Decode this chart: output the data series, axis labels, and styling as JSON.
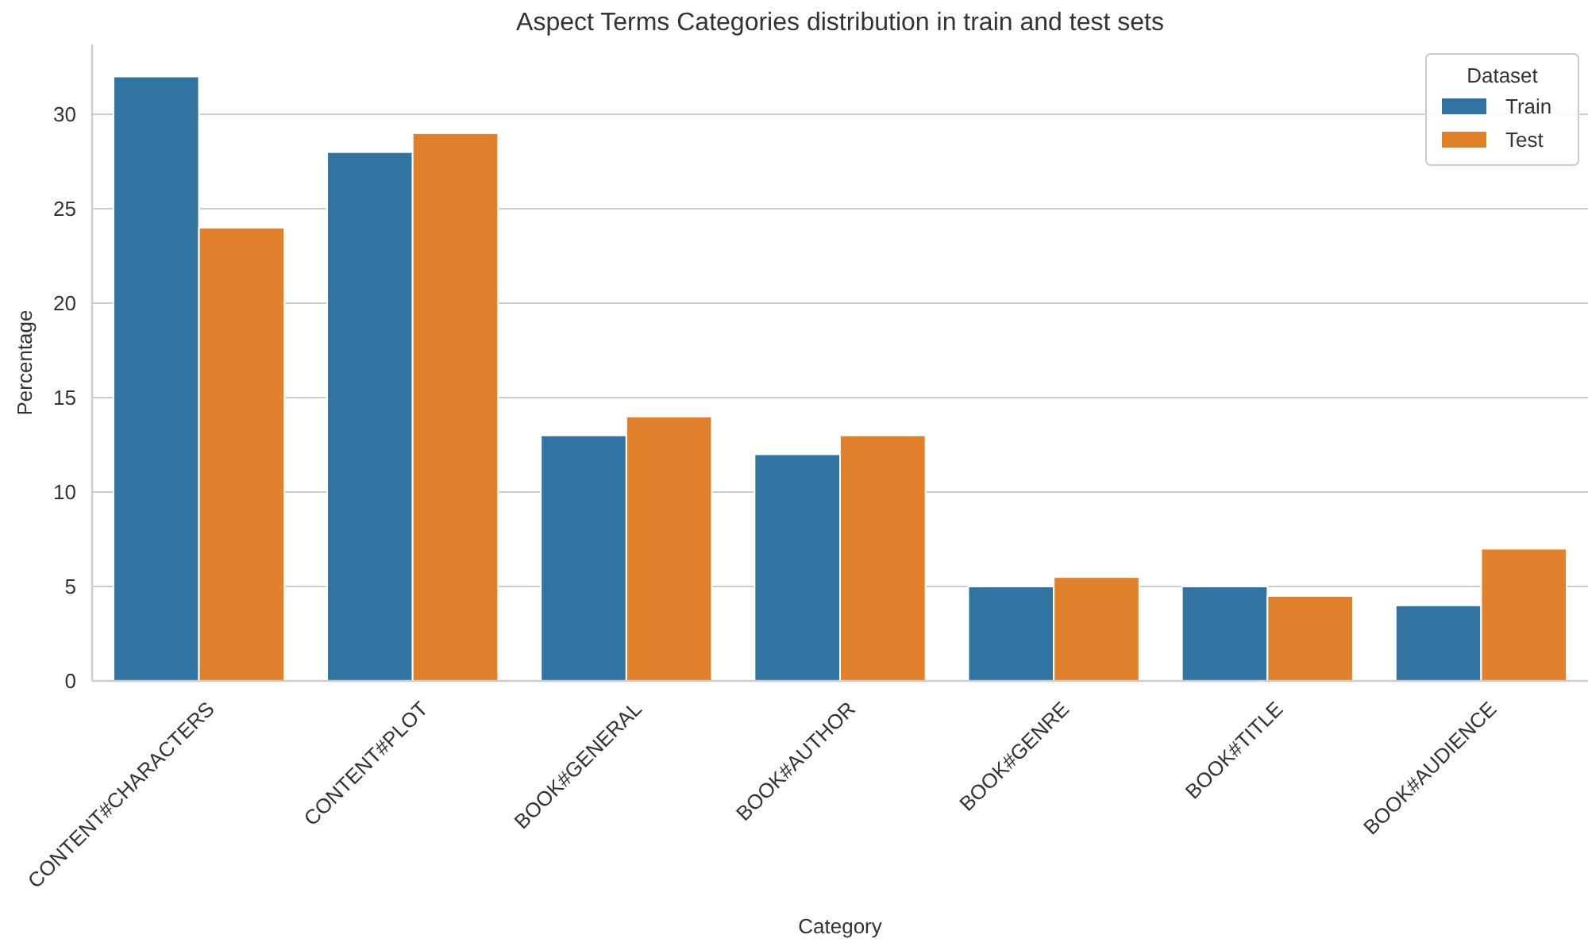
{
  "chart_data": {
    "type": "bar",
    "title": "Aspect Terms Categories distribution in train and test sets",
    "xlabel": "Category",
    "ylabel": "Percentage",
    "legend_title": "Dataset",
    "categories": [
      "CONTENT#CHARACTERS",
      "CONTENT#PLOT",
      "BOOK#GENERAL",
      "BOOK#AUTHOR",
      "BOOK#GENRE",
      "BOOK#TITLE",
      "BOOK#AUDIENCE"
    ],
    "series": [
      {
        "name": "Train",
        "color": "#3274a1",
        "values": [
          32,
          28,
          13,
          12,
          5,
          5,
          4
        ]
      },
      {
        "name": "Test",
        "color": "#e1812c",
        "values": [
          24,
          29,
          14,
          13,
          5.5,
          4.5,
          7
        ]
      }
    ],
    "ylim": [
      0,
      33.7
    ],
    "yticks": [
      0,
      5,
      10,
      15,
      20,
      25,
      30
    ],
    "grid": "y",
    "legend": "top right"
  }
}
